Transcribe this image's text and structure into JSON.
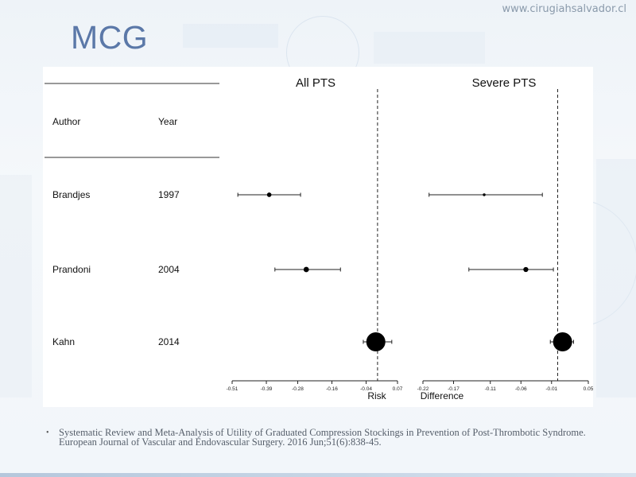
{
  "header": {
    "site_url": "www.cirugiahsalvador.cl",
    "title": "MCG"
  },
  "table": {
    "col_author": "Author",
    "col_year": "Year"
  },
  "chart_data": [
    {
      "type": "scatter",
      "title": "All PTS",
      "xlabel": "Risk",
      "xlim": [
        -0.51,
        0.07
      ],
      "x_ticks": [
        -0.51,
        -0.39,
        -0.28,
        -0.16,
        -0.04,
        0.07
      ],
      "x_tick_labels": [
        "-0.51",
        "-0.39",
        "-0.28",
        "-0.16",
        "-0.04",
        "0.07"
      ],
      "reference_line": 0,
      "categories": [
        "Brandjes",
        "Prandoni",
        "Kahn"
      ],
      "years": [
        "1997",
        "2004",
        "2014"
      ],
      "points": [
        {
          "study": "Brandjes",
          "estimate": -0.38,
          "ci_low": -0.49,
          "ci_high": -0.27,
          "weight": 0.15
        },
        {
          "study": "Prandoni",
          "estimate": -0.25,
          "ci_low": -0.36,
          "ci_high": -0.13,
          "weight": 0.2
        },
        {
          "study": "Kahn",
          "estimate": -0.006,
          "ci_low": -0.05,
          "ci_high": 0.05,
          "weight": 1.0
        }
      ]
    },
    {
      "type": "scatter",
      "title": "Severe PTS",
      "xlabel": "Difference",
      "xlim": [
        -0.22,
        0.05
      ],
      "x_ticks": [
        -0.22,
        -0.17,
        -0.11,
        -0.06,
        -0.01,
        0.05
      ],
      "x_tick_labels": [
        "-0.22",
        "-0.17",
        "-0.11",
        "-0.06",
        "-0.01",
        "0.05"
      ],
      "reference_line": 0,
      "categories": [
        "Brandjes",
        "Prandoni",
        "Kahn"
      ],
      "years": [
        "1997",
        "2004",
        "2014"
      ],
      "points": [
        {
          "study": "Brandjes",
          "estimate": -0.12,
          "ci_low": -0.21,
          "ci_high": -0.025,
          "weight": 0.05
        },
        {
          "study": "Prandoni",
          "estimate": -0.052,
          "ci_low": -0.145,
          "ci_high": -0.007,
          "weight": 0.18
        },
        {
          "study": "Kahn",
          "estimate": 0.008,
          "ci_low": -0.012,
          "ci_high": 0.026,
          "weight": 1.0
        }
      ]
    }
  ],
  "citation": "Systematic Review and Meta-Analysis of Utility of Graduated Compression Stockings in Prevention of Post-Thrombotic Syndrome. European Journal of Vascular and Endovascular Surgery. 2016 Jun;51(6):838-45."
}
